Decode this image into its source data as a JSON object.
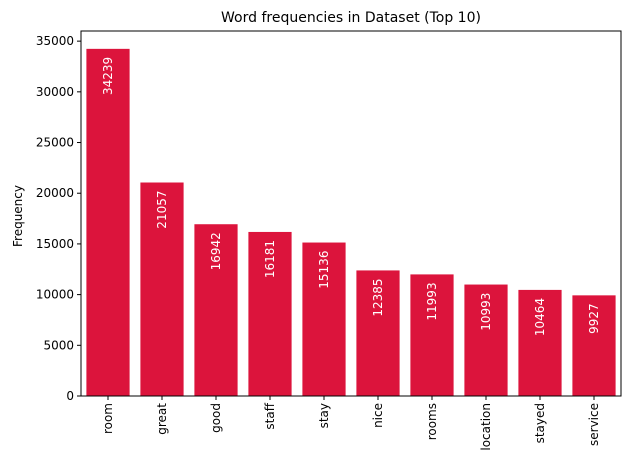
{
  "chart_data": {
    "type": "bar",
    "title": "Word frequencies in Dataset (Top 10)",
    "xlabel": "",
    "ylabel": "Frequency",
    "categories": [
      "room",
      "great",
      "good",
      "staff",
      "stay",
      "nice",
      "rooms",
      "location",
      "stayed",
      "service"
    ],
    "values": [
      34239,
      21057,
      16942,
      16181,
      15136,
      12385,
      11993,
      10993,
      10464,
      9927
    ],
    "data_labels": [
      "34239",
      "21057",
      "16942",
      "16181",
      "15136",
      "12385",
      "11993",
      "10993",
      "10464",
      "9927"
    ],
    "ylim": [
      0,
      36000
    ],
    "yticks": [
      0,
      5000,
      10000,
      15000,
      20000,
      25000,
      30000,
      35000
    ],
    "ytick_labels": [
      "0",
      "5000",
      "10000",
      "15000",
      "20000",
      "25000",
      "30000",
      "35000"
    ],
    "bar_color": "#DC143C",
    "grid": false,
    "legend": "none"
  }
}
